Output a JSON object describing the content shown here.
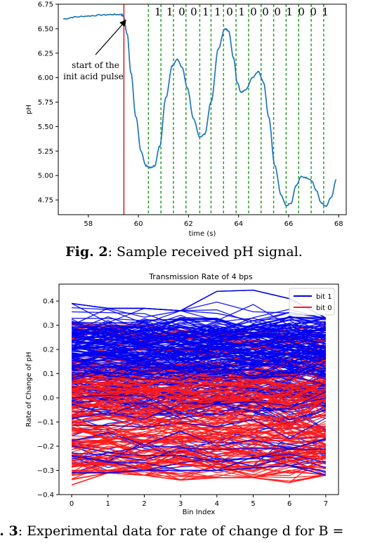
{
  "figure2": {
    "caption_label": "Fig. 2",
    "caption_text": ":  Sample received pH signal.",
    "annotation_line1": "start of the",
    "annotation_line2": "init acid pulse",
    "bits_text": "1 1 0 0 1 1 0 1 0 0 0 1 0 0 1",
    "colors": {
      "signal": "#1f77b4",
      "start_line": "#d62728",
      "bit_lines": "#2ca02c"
    }
  },
  "figure3": {
    "caption_label": "g. 3",
    "caption_text": ":  Experimental data for rate of change d for B =",
    "colors": {
      "bit1": "#0000ee",
      "bit0": "#ff1a1a"
    }
  },
  "chart_data": [
    {
      "type": "line",
      "title": "",
      "xlabel": "time (s)",
      "ylabel": "pH",
      "xlim": [
        56.8,
        68.3
      ],
      "ylim": [
        4.6,
        6.75
      ],
      "xticks": [
        58,
        60,
        62,
        64,
        66,
        68
      ],
      "yticks": [
        4.75,
        5.0,
        5.25,
        5.5,
        5.75,
        6.0,
        6.25,
        6.5,
        6.75
      ],
      "grid": false,
      "series": [
        {
          "x": [
            57.0,
            57.5,
            58.0,
            58.5,
            59.0,
            59.3,
            59.4,
            59.55,
            59.7,
            59.9,
            60.1,
            60.3,
            60.5,
            60.65,
            60.85,
            61.1,
            61.35,
            61.55,
            61.75,
            61.95,
            62.2,
            62.45,
            62.65,
            62.9,
            63.2,
            63.45,
            63.6,
            63.8,
            63.95,
            64.1,
            64.3,
            64.55,
            64.8,
            65.0,
            65.2,
            65.45,
            65.7,
            65.9,
            66.1,
            66.3,
            66.5,
            66.7,
            66.9,
            67.1,
            67.3,
            67.5,
            67.7,
            67.9
          ],
          "y": [
            6.6,
            6.62,
            6.63,
            6.64,
            6.645,
            6.645,
            6.63,
            6.45,
            6.05,
            5.6,
            5.25,
            5.1,
            5.08,
            5.1,
            5.3,
            5.8,
            6.12,
            6.19,
            6.1,
            5.9,
            5.58,
            5.39,
            5.42,
            5.75,
            6.3,
            6.5,
            6.48,
            6.2,
            5.95,
            5.85,
            5.88,
            6.0,
            6.06,
            5.95,
            5.6,
            5.1,
            4.8,
            4.69,
            4.72,
            4.9,
            4.99,
            4.98,
            4.95,
            4.85,
            4.72,
            4.69,
            4.78,
            4.96
          ]
        }
      ],
      "vlines": {
        "start_red": 59.42,
        "bit_green": [
          60.4,
          60.9,
          61.4,
          61.9,
          62.45,
          62.9,
          63.4,
          63.9,
          64.4,
          64.9,
          65.4,
          65.9,
          66.4,
          66.9,
          67.4
        ]
      }
    },
    {
      "type": "line",
      "title": "Transmission Rate of 4 bps",
      "xlabel": "Bin Index",
      "ylabel": "Rate of Change of pH",
      "xlim": [
        -0.35,
        7.35
      ],
      "ylim": [
        -0.4,
        0.47
      ],
      "xticks": [
        0,
        1,
        2,
        3,
        4,
        5,
        6,
        7
      ],
      "yticks": [
        -0.4,
        -0.3,
        -0.2,
        -0.1,
        0.0,
        0.1,
        0.2,
        0.3,
        0.4
      ],
      "grid": false,
      "legend": {
        "placement": "top-right",
        "entries": [
          "bit 1",
          "bit 0"
        ]
      },
      "series": [
        {
          "name": "bit 1",
          "envelope_upper": [
            0.39,
            0.37,
            0.37,
            0.36,
            0.44,
            0.445,
            0.41,
            0.33
          ],
          "envelope_lower": [
            -0.31,
            -0.31,
            -0.3,
            -0.3,
            -0.3,
            -0.29,
            -0.28,
            -0.32
          ],
          "core_range": [
            -0.05,
            0.3
          ]
        },
        {
          "name": "bit 0",
          "envelope_upper": [
            0.31,
            0.3,
            0.3,
            0.28,
            0.26,
            0.27,
            0.28,
            0.3
          ],
          "envelope_lower": [
            -0.36,
            -0.31,
            -0.32,
            -0.34,
            -0.33,
            -0.33,
            -0.35,
            -0.32
          ],
          "core_range": [
            -0.32,
            0.1
          ]
        }
      ]
    }
  ]
}
